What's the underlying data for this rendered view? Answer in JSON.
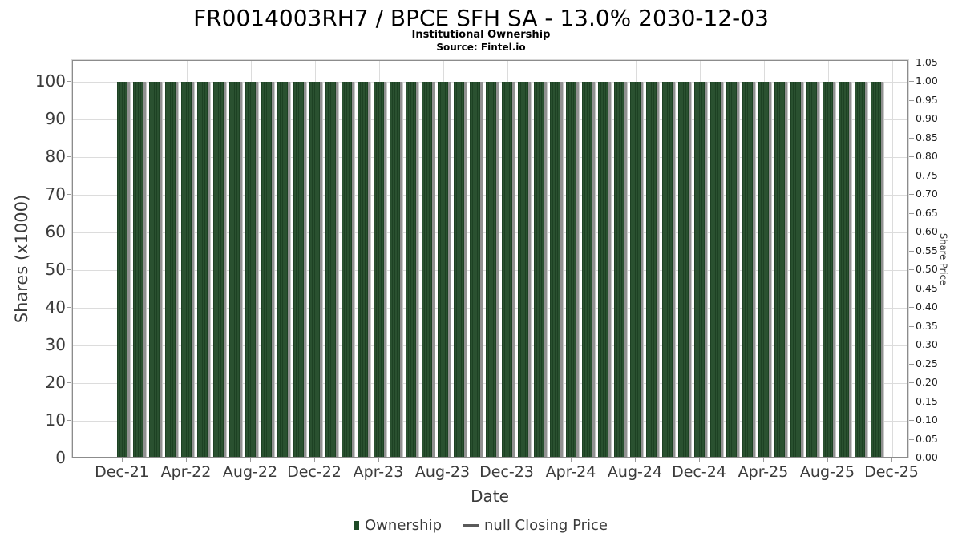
{
  "header": {
    "title": "FR0014003RH7 / BPCE SFH SA - 13.0% 2030-12-03",
    "subtitle": "Institutional Ownership",
    "source": "Source: Fintel.io"
  },
  "chart_data": {
    "type": "bar",
    "title": "FR0014003RH7 / BPCE SFH SA - 13.0% 2030-12-03",
    "subtitle": "Institutional Ownership",
    "source": "Source: Fintel.io",
    "xlabel": "Date",
    "ylabel": "Shares (x1000)",
    "y2label": "Share Price",
    "grid": true,
    "legend_position": "bottom",
    "ylim": [
      0,
      105.5
    ],
    "y2lim": [
      0,
      1.0555
    ],
    "yticks": [
      "0",
      "10",
      "20",
      "30",
      "40",
      "50",
      "60",
      "70",
      "80",
      "90",
      "100"
    ],
    "y2ticks": [
      "0.00",
      "0.05",
      "0.10",
      "0.15",
      "0.20",
      "0.25",
      "0.30",
      "0.35",
      "0.40",
      "0.45",
      "0.50",
      "0.55",
      "0.60",
      "0.65",
      "0.70",
      "0.75",
      "0.80",
      "0.85",
      "0.90",
      "0.95",
      "1.00",
      "1.05"
    ],
    "xticks": [
      "Dec-21",
      "Apr-22",
      "Aug-22",
      "Dec-22",
      "Apr-23",
      "Aug-23",
      "Dec-23",
      "Apr-24",
      "Aug-24",
      "Dec-24",
      "Apr-25",
      "Aug-25",
      "Dec-25"
    ],
    "x": [
      "Dec-21",
      "Jan-22",
      "Feb-22",
      "Mar-22",
      "Apr-22",
      "May-22",
      "Jun-22",
      "Jul-22",
      "Aug-22",
      "Sep-22",
      "Oct-22",
      "Nov-22",
      "Dec-22",
      "Jan-23",
      "Feb-23",
      "Mar-23",
      "Apr-23",
      "May-23",
      "Jun-23",
      "Jul-23",
      "Aug-23",
      "Sep-23",
      "Oct-23",
      "Nov-23",
      "Dec-23",
      "Jan-24",
      "Feb-24",
      "Mar-24",
      "Apr-24",
      "May-24",
      "Jun-24",
      "Jul-24",
      "Aug-24",
      "Sep-24",
      "Oct-24",
      "Nov-24",
      "Dec-24",
      "Jan-25",
      "Feb-25",
      "Mar-25",
      "Apr-25",
      "May-25",
      "Jun-25",
      "Jul-25",
      "Aug-25",
      "Sep-25",
      "Oct-25",
      "Nov-25"
    ],
    "series": [
      {
        "name": "Ownership",
        "axis": "left",
        "color": "#234b29",
        "values": [
          100,
          100,
          100,
          100,
          100,
          100,
          100,
          100,
          100,
          100,
          100,
          100,
          100,
          100,
          100,
          100,
          100,
          100,
          100,
          100,
          100,
          100,
          100,
          100,
          100,
          100,
          100,
          100,
          100,
          100,
          100,
          100,
          100,
          100,
          100,
          100,
          100,
          100,
          100,
          100,
          100,
          100,
          100,
          100,
          100,
          100,
          100,
          100
        ]
      },
      {
        "name": "null Closing Price",
        "axis": "right",
        "color": "#5a5a5a",
        "values": []
      }
    ]
  },
  "legend": {
    "items": [
      {
        "label": "Ownership",
        "marker": "square",
        "color": "#1e4a26"
      },
      {
        "label": "null Closing Price",
        "marker": "dash",
        "color": "#5a5a5a"
      }
    ]
  },
  "colors": {
    "bar": "#234b29",
    "bar_shadow": "#919191",
    "grid": "#dcdcdc",
    "spine": "#8c8c8c",
    "tick_text": "#3b3b3b",
    "title_text": "#000000"
  }
}
